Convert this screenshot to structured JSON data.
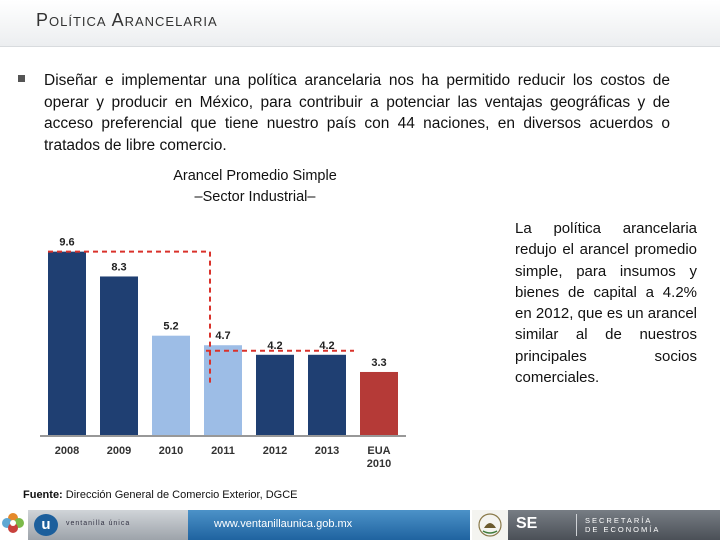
{
  "header": {
    "title": "Política Arancelaria"
  },
  "intro": {
    "text": "Diseñar e implementar una política arancelaria nos ha permitido reducir los costos de operar y producir en México, para contribuir a potenciar las ventajas geográficas y de acceso preferencial que tiene nuestro país con 44 naciones, en diversos acuerdos o tratados de libre comercio."
  },
  "chart_title": {
    "line1": "Arancel Promedio Simple",
    "line2": "–Sector Industrial–"
  },
  "side_note": {
    "text": "La política arancelaria redujo el arancel promedio simple, para insumos y bienes de capital a 4.2% en 2012, que es un arancel similar al de nuestros principales socios comerciales."
  },
  "source": {
    "label": "Fuente:",
    "text": "Dirección General de Comercio Exterior, DGCE"
  },
  "footer": {
    "url": "www.ventanillaunica.gob.mx",
    "logo_u": "u",
    "small_label": "ventanilla única",
    "se": "SE",
    "secretaria_line1": "SECRETARÍA",
    "secretaria_line2": "DE ECONOMÍA"
  },
  "colors": {
    "dark_blue": "#1f3f72",
    "light_blue": "#9dbde6",
    "red": "#b53a37",
    "dashed_red": "#d9322b"
  },
  "chart_data": {
    "type": "bar",
    "title": "Arancel Promedio Simple –Sector Industrial–",
    "categories": [
      "2008",
      "2009",
      "2010",
      "2011",
      "2012",
      "2013",
      "EUA 2010"
    ],
    "values": [
      9.6,
      8.3,
      5.2,
      4.7,
      4.2,
      4.2,
      3.3
    ],
    "value_labels": [
      "9.6",
      "8.3",
      "5.2",
      "4.7",
      "4.2",
      "4.2",
      "3.3"
    ],
    "bar_colors": [
      "dark_blue",
      "dark_blue",
      "light_blue",
      "light_blue",
      "dark_blue",
      "dark_blue",
      "red"
    ],
    "ylim": [
      0,
      10
    ],
    "xlabel": "",
    "ylabel": "",
    "annotation": "dashed line from 9.6 down to 5.2 and from 5.2 across to 4.2"
  }
}
